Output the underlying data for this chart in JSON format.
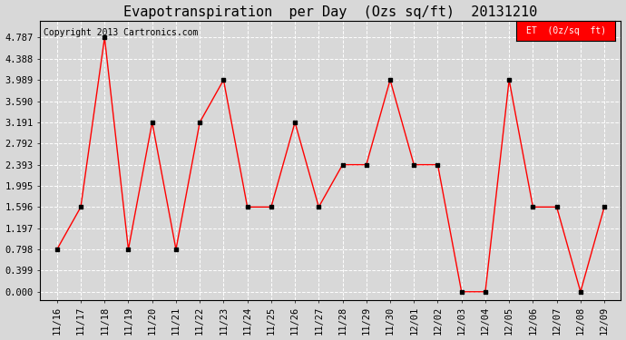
{
  "title": "Evapotranspiration  per Day  (Ozs sq/ft)  20131210",
  "copyright": "Copyright 2013 Cartronics.com",
  "legend_label": "ET  (0z/sq  ft)",
  "x_labels": [
    "11/16",
    "11/17",
    "11/18",
    "11/19",
    "11/20",
    "11/21",
    "11/22",
    "11/23",
    "11/24",
    "11/25",
    "11/26",
    "11/27",
    "11/28",
    "11/29",
    "11/30",
    "12/01",
    "12/02",
    "12/03",
    "12/04",
    "12/05",
    "12/06",
    "12/07",
    "12/08",
    "12/09"
  ],
  "y_values": [
    0.798,
    1.596,
    4.787,
    0.798,
    3.191,
    0.798,
    3.191,
    3.989,
    1.596,
    1.596,
    3.191,
    1.596,
    2.393,
    2.393,
    3.989,
    2.393,
    2.393,
    0.0,
    0.0,
    3.989,
    1.596,
    1.596,
    0.0,
    1.596
  ],
  "y_ticks": [
    0.0,
    0.399,
    0.798,
    1.197,
    1.596,
    1.995,
    2.393,
    2.792,
    3.191,
    3.59,
    3.989,
    4.388,
    4.787
  ],
  "line_color": "red",
  "marker_color": "black",
  "background_color": "#d8d8d8",
  "plot_bg_color": "#d8d8d8",
  "grid_color": "white",
  "legend_bg_color": "red",
  "legend_text_color": "white",
  "title_fontsize": 11,
  "tick_fontsize": 7.5,
  "copyright_fontsize": 7
}
